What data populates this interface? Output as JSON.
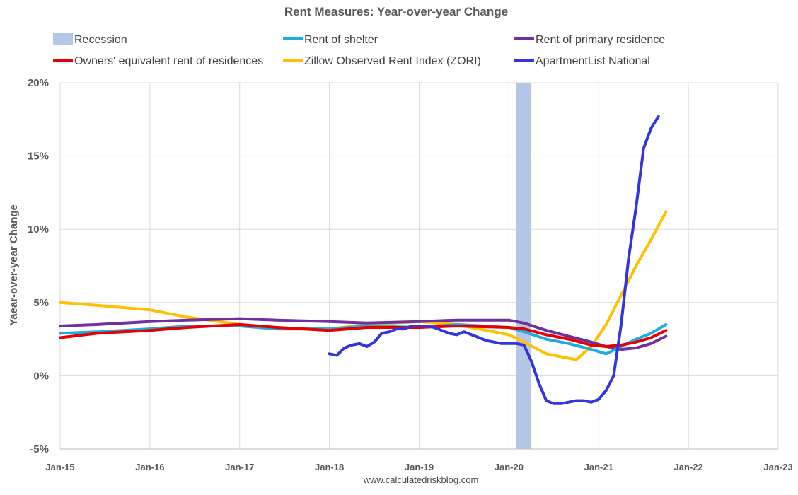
{
  "chart_data": {
    "type": "line",
    "title": "Rent Measures: Year-over-year Change",
    "ylabel": "Yaear-over-year Change",
    "xlabel": "",
    "source": "www.calculatedriskblog.com",
    "ylim": [
      -5,
      20
    ],
    "yticks": [
      -5,
      0,
      5,
      10,
      15,
      20
    ],
    "ytick_labels": [
      "-5%",
      "0%",
      "5%",
      "10%",
      "15%",
      "20%"
    ],
    "xlim": [
      "2015-01",
      "2023-01"
    ],
    "xticks": [
      "2015-01",
      "2016-01",
      "2017-01",
      "2018-01",
      "2019-01",
      "2020-01",
      "2021-01",
      "2022-01",
      "2023-01"
    ],
    "xtick_labels": [
      "Jan-15",
      "Jan-16",
      "Jan-17",
      "Jan-18",
      "Jan-19",
      "Jan-20",
      "Jan-21",
      "Jan-22",
      "Jan-23"
    ],
    "grid": true,
    "legend_position": "top",
    "recession": {
      "label": "Recession",
      "start": "2020-02",
      "end": "2020-04",
      "color": "#b4c7e7"
    },
    "series": [
      {
        "name": "Rent of shelter",
        "color": "#1cabe2",
        "points": [
          [
            "2015-01",
            2.9
          ],
          [
            "2015-06",
            3.0
          ],
          [
            "2016-01",
            3.2
          ],
          [
            "2016-06",
            3.4
          ],
          [
            "2017-01",
            3.4
          ],
          [
            "2017-06",
            3.2
          ],
          [
            "2018-01",
            3.2
          ],
          [
            "2018-06",
            3.4
          ],
          [
            "2019-01",
            3.3
          ],
          [
            "2019-06",
            3.5
          ],
          [
            "2020-01",
            3.3
          ],
          [
            "2020-03",
            3.0
          ],
          [
            "2020-06",
            2.5
          ],
          [
            "2020-09",
            2.2
          ],
          [
            "2020-12",
            1.8
          ],
          [
            "2021-02",
            1.5
          ],
          [
            "2021-04",
            2.0
          ],
          [
            "2021-06",
            2.5
          ],
          [
            "2021-08",
            2.9
          ],
          [
            "2021-10",
            3.5
          ]
        ]
      },
      {
        "name": "Rent of primary residence",
        "color": "#7030a0",
        "points": [
          [
            "2015-01",
            3.4
          ],
          [
            "2015-06",
            3.5
          ],
          [
            "2016-01",
            3.7
          ],
          [
            "2016-06",
            3.8
          ],
          [
            "2017-01",
            3.9
          ],
          [
            "2017-06",
            3.8
          ],
          [
            "2018-01",
            3.7
          ],
          [
            "2018-06",
            3.6
          ],
          [
            "2019-01",
            3.7
          ],
          [
            "2019-06",
            3.8
          ],
          [
            "2020-01",
            3.8
          ],
          [
            "2020-03",
            3.6
          ],
          [
            "2020-06",
            3.1
          ],
          [
            "2020-09",
            2.7
          ],
          [
            "2020-12",
            2.3
          ],
          [
            "2021-02",
            2.0
          ],
          [
            "2021-04",
            1.8
          ],
          [
            "2021-06",
            1.9
          ],
          [
            "2021-08",
            2.2
          ],
          [
            "2021-10",
            2.7
          ]
        ]
      },
      {
        "name": "Owners' equivalent rent of residences",
        "color": "#e60000",
        "points": [
          [
            "2015-01",
            2.6
          ],
          [
            "2015-06",
            2.9
          ],
          [
            "2016-01",
            3.1
          ],
          [
            "2016-06",
            3.3
          ],
          [
            "2017-01",
            3.5
          ],
          [
            "2017-06",
            3.3
          ],
          [
            "2018-01",
            3.1
          ],
          [
            "2018-06",
            3.3
          ],
          [
            "2019-01",
            3.3
          ],
          [
            "2019-06",
            3.4
          ],
          [
            "2020-01",
            3.3
          ],
          [
            "2020-03",
            3.2
          ],
          [
            "2020-06",
            2.8
          ],
          [
            "2020-09",
            2.5
          ],
          [
            "2020-12",
            2.1
          ],
          [
            "2021-02",
            2.0
          ],
          [
            "2021-04",
            2.1
          ],
          [
            "2021-06",
            2.3
          ],
          [
            "2021-08",
            2.6
          ],
          [
            "2021-10",
            3.1
          ]
        ]
      },
      {
        "name": "Zillow Observed Rent Index (ZORI)",
        "color": "#ffc000",
        "points": [
          [
            "2015-01",
            5.0
          ],
          [
            "2015-06",
            4.8
          ],
          [
            "2016-01",
            4.5
          ],
          [
            "2016-06",
            4.0
          ],
          [
            "2017-01",
            3.5
          ],
          [
            "2017-06",
            3.2
          ],
          [
            "2018-01",
            3.2
          ],
          [
            "2018-06",
            3.5
          ],
          [
            "2019-01",
            3.7
          ],
          [
            "2019-06",
            3.5
          ],
          [
            "2020-01",
            2.8
          ],
          [
            "2020-03",
            2.3
          ],
          [
            "2020-06",
            1.5
          ],
          [
            "2020-08",
            1.3
          ],
          [
            "2020-10",
            1.1
          ],
          [
            "2020-12",
            2.0
          ],
          [
            "2021-02",
            3.5
          ],
          [
            "2021-04",
            5.5
          ],
          [
            "2021-06",
            7.5
          ],
          [
            "2021-08",
            9.3
          ],
          [
            "2021-10",
            11.2
          ]
        ]
      },
      {
        "name": "ApartmentList National",
        "color": "#3333e0",
        "points": [
          [
            "2018-01",
            1.5
          ],
          [
            "2018-02",
            1.4
          ],
          [
            "2018-03",
            1.9
          ],
          [
            "2018-04",
            2.1
          ],
          [
            "2018-05",
            2.2
          ],
          [
            "2018-06",
            2.0
          ],
          [
            "2018-07",
            2.3
          ],
          [
            "2018-08",
            2.9
          ],
          [
            "2018-09",
            3.0
          ],
          [
            "2018-10",
            3.2
          ],
          [
            "2018-11",
            3.2
          ],
          [
            "2018-12",
            3.4
          ],
          [
            "2019-01",
            3.4
          ],
          [
            "2019-02",
            3.4
          ],
          [
            "2019-03",
            3.3
          ],
          [
            "2019-04",
            3.1
          ],
          [
            "2019-05",
            2.9
          ],
          [
            "2019-06",
            2.8
          ],
          [
            "2019-07",
            3.0
          ],
          [
            "2019-08",
            2.8
          ],
          [
            "2019-09",
            2.6
          ],
          [
            "2019-10",
            2.4
          ],
          [
            "2019-11",
            2.3
          ],
          [
            "2019-12",
            2.2
          ],
          [
            "2020-01",
            2.2
          ],
          [
            "2020-02",
            2.2
          ],
          [
            "2020-03",
            2.1
          ],
          [
            "2020-04",
            1.0
          ],
          [
            "2020-05",
            -0.5
          ],
          [
            "2020-06",
            -1.7
          ],
          [
            "2020-07",
            -1.9
          ],
          [
            "2020-08",
            -1.9
          ],
          [
            "2020-09",
            -1.8
          ],
          [
            "2020-10",
            -1.7
          ],
          [
            "2020-11",
            -1.7
          ],
          [
            "2020-12",
            -1.8
          ],
          [
            "2021-01",
            -1.6
          ],
          [
            "2021-02",
            -1.0
          ],
          [
            "2021-03",
            0.0
          ],
          [
            "2021-04",
            3.5
          ],
          [
            "2021-05",
            8.0
          ],
          [
            "2021-06",
            11.5
          ],
          [
            "2021-07",
            15.5
          ],
          [
            "2021-08",
            16.9
          ],
          [
            "2021-09",
            17.7
          ]
        ]
      }
    ]
  }
}
